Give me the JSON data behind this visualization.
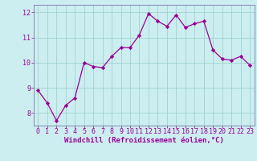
{
  "x": [
    0,
    1,
    2,
    3,
    4,
    5,
    6,
    7,
    8,
    9,
    10,
    11,
    12,
    13,
    14,
    15,
    16,
    17,
    18,
    19,
    20,
    21,
    22,
    23
  ],
  "y": [
    8.9,
    8.4,
    7.7,
    8.3,
    8.6,
    10.0,
    9.85,
    9.8,
    10.25,
    10.6,
    10.6,
    11.1,
    11.95,
    11.65,
    11.45,
    11.9,
    11.4,
    11.55,
    11.65,
    10.5,
    10.15,
    10.1,
    10.25,
    9.9
  ],
  "line_color": "#990099",
  "marker": "D",
  "marker_size": 2.2,
  "bg_color": "#cceef0",
  "grid_color": "#99cccc",
  "xlabel": "Windchill (Refroidissement éolien,°C)",
  "xlabel_color": "#990099",
  "tick_color": "#990099",
  "spine_color": "#7777aa",
  "ylim": [
    7.5,
    12.3
  ],
  "xlim": [
    -0.5,
    23.5
  ],
  "yticks": [
    8,
    9,
    10,
    11,
    12
  ],
  "xticks": [
    0,
    1,
    2,
    3,
    4,
    5,
    6,
    7,
    8,
    9,
    10,
    11,
    12,
    13,
    14,
    15,
    16,
    17,
    18,
    19,
    20,
    21,
    22,
    23
  ],
  "figsize": [
    3.2,
    2.0
  ],
  "dpi": 100,
  "tick_fontsize": 6.0,
  "ylabel_fontsize": 6.5,
  "xlabel_fontsize": 6.5
}
